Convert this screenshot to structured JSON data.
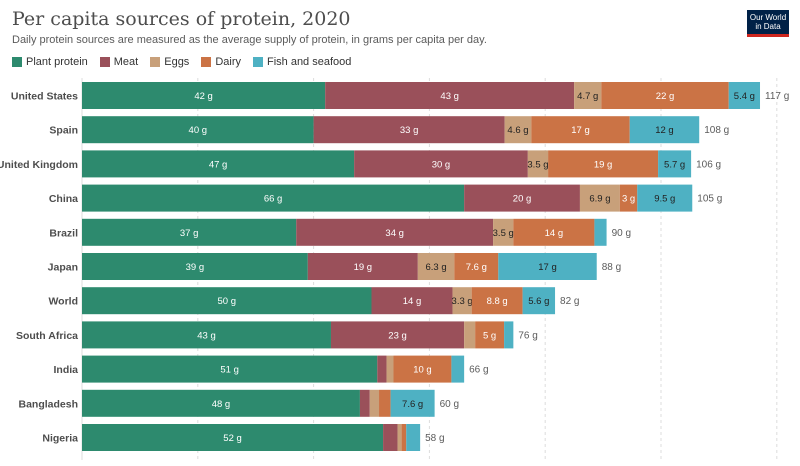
{
  "header": {
    "title": "Per capita sources of protein, 2020",
    "subtitle": "Daily protein sources are measured as the average supply of protein, in grams per capita per day.",
    "logo": "Our World in Data"
  },
  "chart_data": {
    "type": "bar",
    "orientation": "horizontal",
    "stacked": true,
    "title": "Per capita sources of protein, 2020",
    "subtitle": "Daily protein sources are measured as the average supply of protein, in grams per capita per day.",
    "unit": "g",
    "legend_position": "top-left",
    "grid": true,
    "xlim": [
      0,
      125
    ],
    "gridlines": [
      0,
      20,
      40,
      60,
      80,
      100,
      120
    ],
    "categories": [
      "United States",
      "Spain",
      "United Kingdom",
      "China",
      "Brazil",
      "Japan",
      "World",
      "South Africa",
      "India",
      "Bangladesh",
      "Nigeria"
    ],
    "series": [
      {
        "name": "Plant protein",
        "color": "#2d8a6e",
        "values": [
          42,
          40,
          47,
          66,
          37,
          39,
          50,
          43,
          51,
          48,
          52
        ]
      },
      {
        "name": "Meat",
        "color": "#9a505a",
        "values": [
          43,
          33,
          30,
          20,
          34,
          19,
          14,
          23,
          1.6,
          1.7,
          2.5
        ]
      },
      {
        "name": "Eggs",
        "color": "#c8a07a",
        "values": [
          4.7,
          4.6,
          3.5,
          6.9,
          3.5,
          6.3,
          3.3,
          1.9,
          1.2,
          1.6,
          0.7
        ]
      },
      {
        "name": "Dairy",
        "color": "#cb7345",
        "values": [
          22,
          17,
          19,
          3,
          14,
          7.6,
          8.8,
          5,
          10,
          2,
          0.8
        ]
      },
      {
        "name": "Fish and seafood",
        "color": "#4eb1c3",
        "values": [
          5.4,
          12,
          5.7,
          9.5,
          2.1,
          17,
          5.6,
          1.6,
          2.2,
          7.6,
          2.4
        ]
      }
    ],
    "totals": [
      117,
      108,
      106,
      105,
      90,
      88,
      82,
      76,
      66,
      60,
      58
    ],
    "min_label_grams": 2.9
  }
}
